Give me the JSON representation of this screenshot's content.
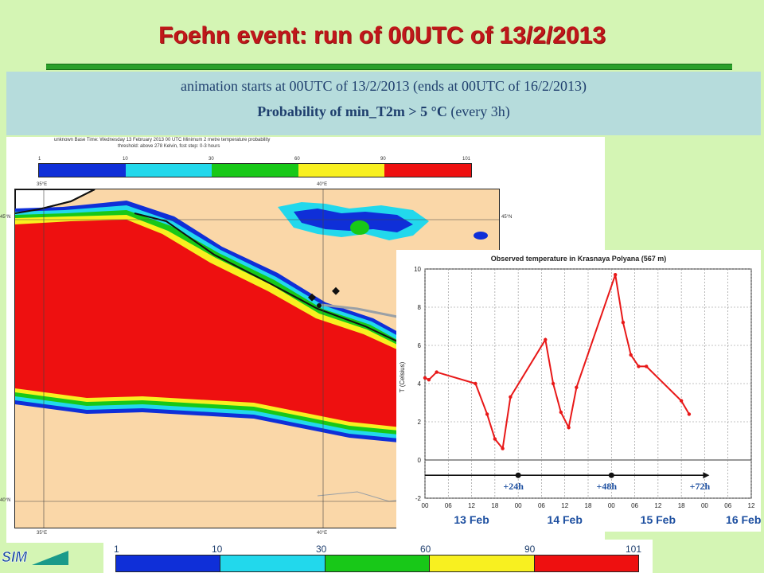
{
  "slide": {
    "title": "Foehn event: run of 00UTC of 13/2/2013",
    "caption_line1": "animation starts at 00UTC of 13/2/2013 (ends at 00UTC of 16/2/2013)",
    "caption_line2_bold": "Probability of min_T2m > 5 °C",
    "caption_line2_rest": " (every 3h)"
  },
  "map": {
    "header_line1": "unknown  Base Time: Wednesday 13 February 2013 00 UTC  Minimum 2 metre temperature probability",
    "header_line2": "threshold: above 278 Kelvin,  fcst step: 0-3 hours",
    "lon_labels": [
      "35°E",
      "40°E"
    ],
    "lat_labels": [
      "45°N",
      "40°N"
    ],
    "colorbar_ticks": [
      "1",
      "10",
      "30",
      "60",
      "90",
      "101"
    ],
    "colorbar_colors": [
      "#0f2fd8",
      "#22d8ec",
      "#18c818",
      "#f8f020",
      "#ee1010"
    ]
  },
  "logo_text": "SIM",
  "chart_data": {
    "type": "line",
    "title": "Observed temperature in Krasnaya Polyana (567 m)",
    "ylabel": "T (Celsius)",
    "xlabel": "",
    "ylim": [
      -2,
      10
    ],
    "yticks": [
      -2,
      0,
      2,
      4,
      6,
      8,
      10
    ],
    "xlim": [
      0,
      84
    ],
    "xticks": [
      0,
      6,
      12,
      18,
      24,
      30,
      36,
      42,
      48,
      54,
      60,
      66,
      72,
      78,
      84
    ],
    "xtick_labels": [
      "00",
      "06",
      "12",
      "18",
      "00",
      "06",
      "12",
      "18",
      "00",
      "06",
      "12",
      "18",
      "00",
      "06",
      "12"
    ],
    "grid": true,
    "day_labels": [
      "13 Feb",
      "14 Feb",
      "15 Feb",
      "16 Feb"
    ],
    "series": [
      {
        "color": "#e81818",
        "points": [
          [
            0,
            4.3
          ],
          [
            1,
            4.2
          ],
          [
            3,
            4.6
          ],
          [
            13,
            4.0
          ],
          [
            16,
            2.4
          ],
          [
            18,
            1.1
          ],
          [
            20,
            0.6
          ],
          [
            22,
            3.3
          ],
          [
            31,
            6.3
          ],
          [
            33,
            4.0
          ],
          [
            35,
            2.5
          ],
          [
            37,
            1.7
          ],
          [
            39,
            3.8
          ],
          [
            49,
            9.7
          ],
          [
            51,
            7.2
          ],
          [
            53,
            5.5
          ],
          [
            55,
            4.9
          ],
          [
            57,
            4.9
          ],
          [
            66,
            3.1
          ],
          [
            68,
            2.4
          ]
        ]
      }
    ],
    "annotation_labels": [
      "+24h",
      "+48h",
      "+72h"
    ]
  },
  "bottom_colorbar": {
    "ticks": [
      "1",
      "10",
      "30",
      "60",
      "90",
      "101"
    ],
    "colors": [
      "#0f2fd8",
      "#22d8ec",
      "#18c818",
      "#f8f020",
      "#ee1010"
    ]
  }
}
